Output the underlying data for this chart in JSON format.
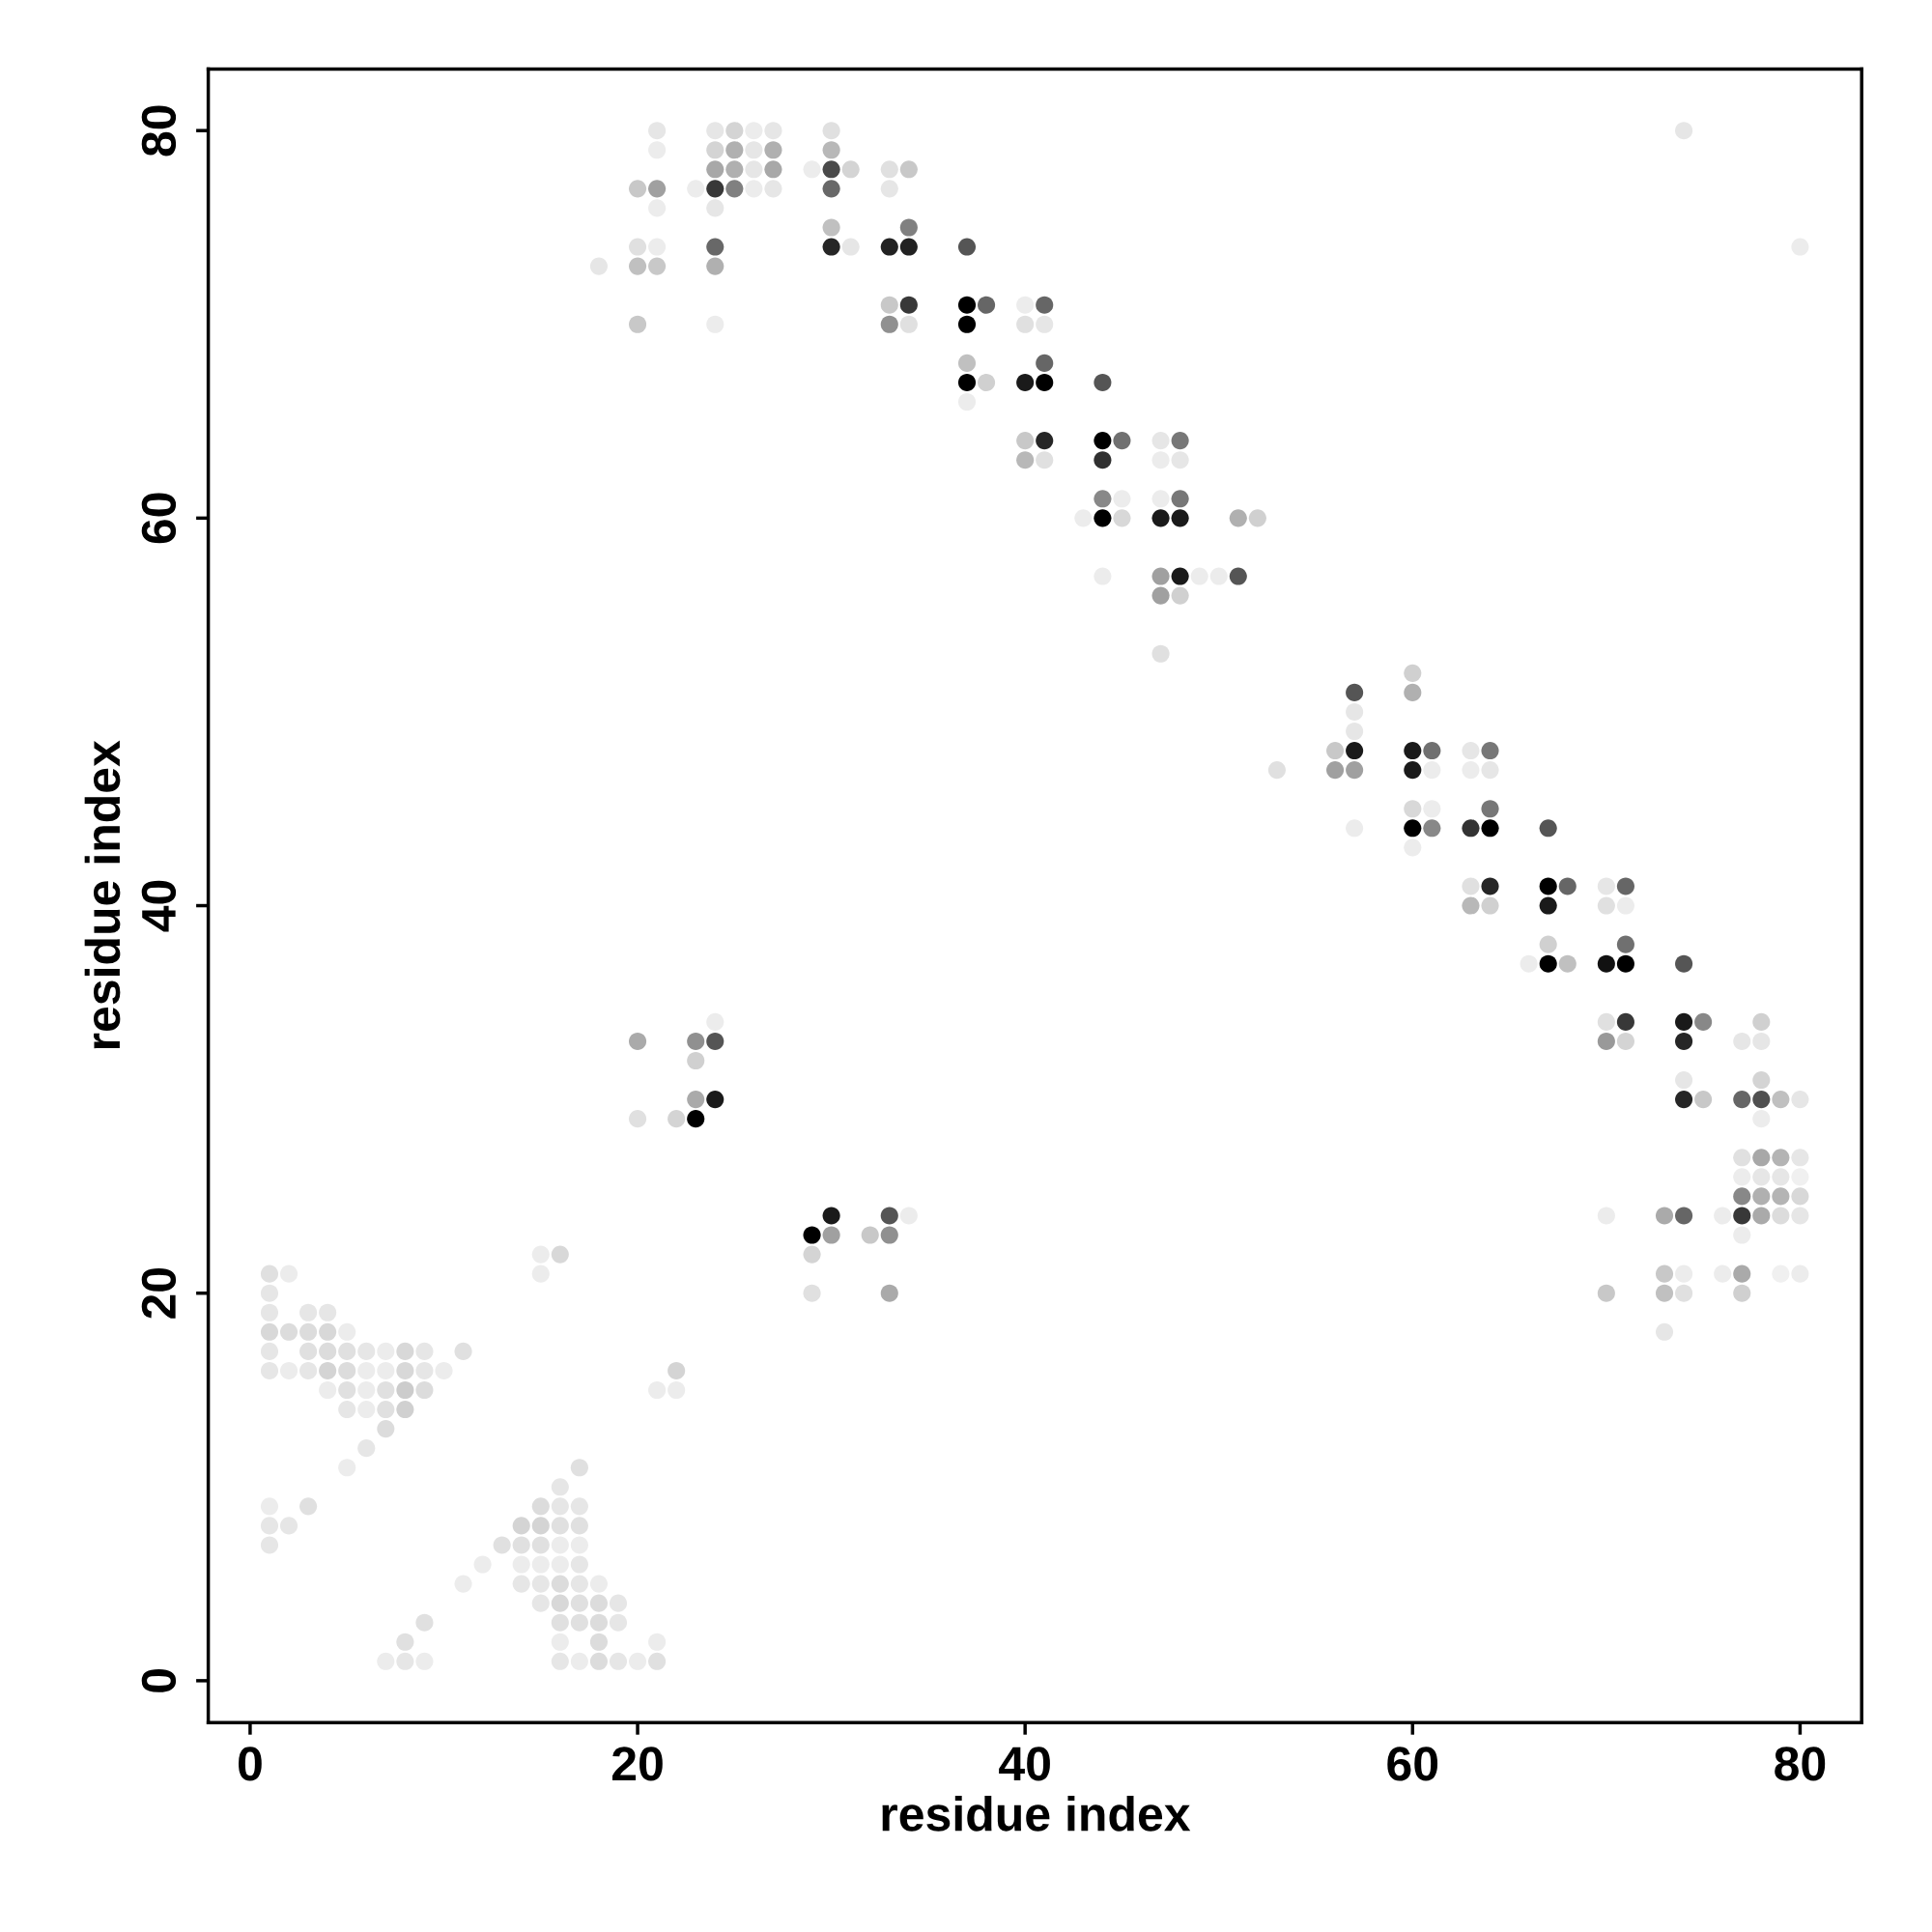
{
  "chart_data": {
    "type": "scatter",
    "xlabel": "residue index",
    "ylabel": "residue index",
    "xlim": [
      -2.16,
      83.18
    ],
    "ylim": [
      -2.16,
      83.18
    ],
    "xticks": [
      0,
      20,
      40,
      60,
      80
    ],
    "yticks": [
      0,
      20,
      40,
      60,
      80
    ],
    "marker": "circle",
    "x": [
      21,
      24,
      25,
      26,
      27,
      30,
      74,
      21,
      24,
      25,
      26,
      27,
      30,
      24,
      25,
      26,
      27,
      29,
      30,
      31,
      33,
      34,
      20,
      21,
      23,
      24,
      25,
      26,
      27,
      30,
      33,
      21,
      24,
      30,
      34,
      20,
      21,
      24,
      30,
      31,
      33,
      34,
      37,
      80,
      18,
      20,
      21,
      24,
      33,
      34,
      37,
      38,
      40,
      41,
      20,
      24,
      33,
      34,
      37,
      40,
      41,
      37,
      41,
      37,
      38,
      40,
      41,
      44,
      37,
      40,
      41,
      44,
      45,
      47,
      48,
      40,
      41,
      44,
      47,
      48,
      44,
      45,
      47,
      48,
      43,
      44,
      45,
      47,
      48,
      51,
      52,
      44,
      47,
      48,
      49,
      50,
      51,
      47,
      48,
      47,
      60,
      57,
      60,
      57,
      57,
      56,
      57,
      60,
      61,
      63,
      64,
      53,
      56,
      57,
      60,
      61,
      63,
      64,
      60,
      61,
      64,
      57,
      60,
      61,
      63,
      64,
      67,
      60,
      63,
      64,
      67,
      68,
      70,
      71,
      63,
      64,
      67,
      70,
      71,
      67,
      71,
      66,
      67,
      68,
      70,
      71,
      74,
      24,
      70,
      71,
      74,
      75,
      78,
      20,
      23,
      24,
      70,
      71,
      74,
      77,
      78,
      23,
      74,
      78,
      23,
      24,
      74,
      75,
      77,
      78,
      79,
      80,
      20,
      22,
      23,
      78,
      77,
      78,
      79,
      80,
      77,
      78,
      79,
      80,
      77,
      78,
      79,
      80,
      30,
      33,
      34,
      70,
      73,
      74,
      76,
      77,
      78,
      79,
      80,
      29,
      30,
      32,
      33,
      77,
      15,
      16,
      29,
      1,
      2,
      15,
      73,
      74,
      76,
      77,
      79,
      80,
      1,
      29,
      33,
      70,
      73,
      74,
      77,
      1,
      3,
      4,
      1,
      2,
      3,
      4,
      5,
      73,
      1,
      3,
      4,
      5,
      6,
      7,
      8,
      9,
      11,
      1,
      2,
      3,
      4,
      5,
      6,
      7,
      8,
      9,
      10,
      22,
      4,
      5,
      6,
      7,
      8,
      9,
      21,
      22,
      5,
      6,
      7,
      8,
      7,
      6,
      5,
      17,
      16,
      1,
      3,
      15,
      16,
      17,
      1,
      2,
      14,
      15,
      16,
      17,
      1,
      13,
      14,
      15,
      16,
      17,
      12,
      14,
      15,
      16,
      17,
      11,
      14,
      15,
      16,
      17,
      18,
      15,
      16,
      17,
      18,
      19,
      9,
      16,
      17,
      18,
      19,
      8,
      16,
      18,
      21,
      7,
      8,
      9,
      16,
      17,
      18,
      19,
      20,
      21
    ],
    "values": [
      80,
      80,
      80,
      80,
      80,
      80,
      80,
      79,
      79,
      79,
      79,
      79,
      79,
      78,
      78,
      78,
      78,
      78,
      78,
      78,
      78,
      78,
      77,
      77,
      77,
      77,
      77,
      77,
      77,
      77,
      77,
      76,
      76,
      75,
      75,
      74,
      74,
      74,
      74,
      74,
      74,
      74,
      74,
      74,
      73,
      73,
      73,
      73,
      71,
      71,
      71,
      71,
      71,
      71,
      70,
      70,
      70,
      70,
      70,
      70,
      70,
      68,
      68,
      67,
      67,
      67,
      67,
      67,
      66,
      64,
      64,
      64,
      64,
      64,
      64,
      63,
      63,
      63,
      63,
      63,
      61,
      61,
      61,
      61,
      60,
      60,
      60,
      60,
      60,
      60,
      60,
      57,
      57,
      57,
      57,
      57,
      57,
      56,
      56,
      53,
      52,
      51,
      51,
      50,
      49,
      48,
      48,
      48,
      48,
      48,
      48,
      47,
      47,
      47,
      47,
      47,
      47,
      47,
      45,
      45,
      45,
      44,
      44,
      44,
      44,
      44,
      44,
      43,
      41,
      41,
      41,
      41,
      41,
      41,
      40,
      40,
      40,
      40,
      40,
      38,
      38,
      37,
      37,
      37,
      37,
      37,
      37,
      34,
      34,
      34,
      34,
      34,
      34,
      33,
      33,
      33,
      33,
      33,
      33,
      33,
      33,
      32,
      31,
      31,
      30,
      30,
      30,
      30,
      30,
      30,
      30,
      30,
      29,
      29,
      29,
      29,
      27,
      27,
      27,
      27,
      26,
      26,
      26,
      26,
      25,
      25,
      25,
      25,
      24,
      24,
      24,
      24,
      24,
      24,
      24,
      24,
      24,
      24,
      24,
      23,
      23,
      23,
      23,
      23,
      22,
      22,
      22,
      21,
      21,
      21,
      21,
      21,
      21,
      21,
      21,
      21,
      20,
      20,
      20,
      20,
      20,
      20,
      20,
      19,
      19,
      19,
      18,
      18,
      18,
      18,
      18,
      18,
      17,
      17,
      17,
      17,
      17,
      17,
      17,
      17,
      17,
      16,
      16,
      16,
      16,
      16,
      16,
      16,
      16,
      16,
      16,
      16,
      15,
      15,
      15,
      15,
      15,
      15,
      15,
      15,
      14,
      14,
      14,
      14,
      13,
      12,
      11,
      11,
      10,
      9,
      9,
      9,
      9,
      9,
      8,
      8,
      8,
      8,
      8,
      8,
      7,
      7,
      7,
      7,
      7,
      7,
      6,
      6,
      6,
      6,
      6,
      5,
      5,
      5,
      5,
      5,
      5,
      4,
      4,
      4,
      4,
      4,
      3,
      3,
      3,
      3,
      3,
      2,
      2,
      2,
      2,
      1,
      1,
      1,
      1,
      1,
      1,
      1,
      1,
      1
    ],
    "colors": [
      "#e6e6e6",
      "#e6e6e6",
      "#d4d4d4",
      "#ececec",
      "#e6e6e6",
      "#e0e0e0",
      "#e6e6e6",
      "#ececec",
      "#d4d4d4",
      "#b0b0b0",
      "#e6e6e6",
      "#b0b0b0",
      "#b8b8b8",
      "#a8a8a8",
      "#b0b0b0",
      "#e6e6e6",
      "#a8a8a8",
      "#ececec",
      "#4a4a4a",
      "#d4d4d4",
      "#e0e0e0",
      "#c8c8c8",
      "#c8c8c8",
      "#a0a0a0",
      "#ececec",
      "#383838",
      "#808080",
      "#ececec",
      "#e6e6e6",
      "#686868",
      "#e6e6e6",
      "#ececec",
      "#e6e6e6",
      "#c0c0c0",
      "#808080",
      "#e0e0e0",
      "#ececec",
      "#686868",
      "#262626",
      "#e6e6e6",
      "#222222",
      "#222222",
      "#555555",
      "#ececec",
      "#e6e6e6",
      "#c0c0c0",
      "#c8c8c8",
      "#b0b0b0",
      "#c8c8c8",
      "#383838",
      "#000000",
      "#666666",
      "#ececec",
      "#666666",
      "#c8c8c8",
      "#ececec",
      "#909090",
      "#e0e0e0",
      "#000000",
      "#e0e0e0",
      "#e6e6e6",
      "#c0c0c0",
      "#666666",
      "#000000",
      "#d0d0d0",
      "#1a1a1a",
      "#000000",
      "#555555",
      "#ececec",
      "#c8c8c8",
      "#262626",
      "#000000",
      "#707070",
      "#e6e6e6",
      "#777777",
      "#b8b8b8",
      "#e0e0e0",
      "#303030",
      "#ececec",
      "#e6e6e6",
      "#888888",
      "#ececec",
      "#ececec",
      "#777777",
      "#ececec",
      "#000000",
      "#d8d8d8",
      "#1a1a1a",
      "#1a1a1a",
      "#b0b0b0",
      "#d0d0d0",
      "#ececec",
      "#a0a0a0",
      "#1a1a1a",
      "#ececec",
      "#ececec",
      "#555555",
      "#a0a0a0",
      "#d0d0d0",
      "#e0e0e0",
      "#d0d0d0",
      "#555555",
      "#b0b0b0",
      "#e6e6e6",
      "#e6e6e6",
      "#c8c8c8",
      "#1a1a1a",
      "#1a1a1a",
      "#707070",
      "#e6e6e6",
      "#777777",
      "#e0e0e0",
      "#a0a0a0",
      "#a0a0a0",
      "#1a1a1a",
      "#ececec",
      "#ececec",
      "#e6e6e6",
      "#d8d8d8",
      "#ececec",
      "#777777",
      "#ececec",
      "#000000",
      "#888888",
      "#333333",
      "#000000",
      "#555555",
      "#ececec",
      "#e0e0e0",
      "#262626",
      "#000000",
      "#666666",
      "#e6e6e6",
      "#666666",
      "#b8b8b8",
      "#d0d0d0",
      "#1a1a1a",
      "#e0e0e0",
      "#ececec",
      "#d0d0d0",
      "#707070",
      "#ececec",
      "#000000",
      "#c0c0c0",
      "#111111",
      "#000000",
      "#555555",
      "#ececec",
      "#e0e0e0",
      "#383838",
      "#1a1a1a",
      "#888888",
      "#d0d0d0",
      "#aaaaaa",
      "#909090",
      "#555555",
      "#999999",
      "#d4d4d4",
      "#262626",
      "#e6e6e6",
      "#e6e6e6",
      "#d0d0d0",
      "#e6e6e6",
      "#d4d4d4",
      "#aaaaaa",
      "#1a1a1a",
      "#262626",
      "#c8c8c8",
      "#666666",
      "#505050",
      "#c0c0c0",
      "#e6e6e6",
      "#e0e0e0",
      "#d4d4d4",
      "#000000",
      "#ececec",
      "#e0e0e0",
      "#a8a8a8",
      "#b4b4b4",
      "#e6e6e6",
      "#ececec",
      "#e6e6e6",
      "#e6e6e6",
      "#f0f0f0",
      "#888888",
      "#b0b0b0",
      "#b4b4b4",
      "#d8d8d8",
      "#1a1a1a",
      "#555555",
      "#ececec",
      "#ececec",
      "#aaaaaa",
      "#666666",
      "#ececec",
      "#383838",
      "#aaaaaa",
      "#dcdcdc",
      "#e6e6e6",
      "#000000",
      "#a0a0a0",
      "#c8c8c8",
      "#909090",
      "#ececec",
      "#ececec",
      "#d8d8d8",
      "#d4d4d4",
      "#e0e0e0",
      "#ececec",
      "#ececec",
      "#c8c8c8",
      "#ececec",
      "#ececec",
      "#aaaaaa",
      "#f0f0f0",
      "#ececec",
      "#e6e6e6",
      "#e0e0e0",
      "#aaaaaa",
      "#c8c8c8",
      "#c0c0c0",
      "#e0e0e0",
      "#d0d0d0",
      "#e6e6e6",
      "#e6e6e6",
      "#e6e6e6",
      "#d8d8d8",
      "#dcdcdc",
      "#dcdcdc",
      "#d8d8d8",
      "#ececec",
      "#e6e6e6",
      "#e6e6e6",
      "#e0e0e0",
      "#dcdcdc",
      "#e0e0e0",
      "#e6e6e6",
      "#ececec",
      "#d8d8d8",
      "#e6e6e6",
      "#e0e0e0",
      "#e6e6e6",
      "#ececec",
      "#e6e6e6",
      "#d4d4d4",
      "#dcdcdc",
      "#ececec",
      "#ececec",
      "#d8d8d8",
      "#e6e6e6",
      "#ececec",
      "#d4d4d4",
      "#ececec",
      "#e0e0e0",
      "#ececec",
      "#e0e0e0",
      "#cccccc",
      "#dcdcdc",
      "#ececec",
      "#ececec",
      "#e6e6e6",
      "#ececec",
      "#e0e0e0",
      "#d0d0d0",
      "#dcdcdc",
      "#e6e6e6",
      "#ececec",
      "#e0e0e0",
      "#e6e6e6",
      "#ececec",
      "#e0e0e0",
      "#dcdcdc",
      "#e6e6e6",
      "#e6e6e6",
      "#e6e6e6",
      "#e6e6e6",
      "#d4d4d4",
      "#d4d4d4",
      "#e0e0e0",
      "#e0e0e0",
      "#e6e6e6",
      "#e0e0e0",
      "#e0e0e0",
      "#e0e0e0",
      "#ececec",
      "#ececec",
      "#ececec",
      "#ececec",
      "#ececec",
      "#ececec",
      "#e6e6e6",
      "#ececec",
      "#e6e6e6",
      "#e6e6e6",
      "#dcdcdc",
      "#e6e6e6",
      "#ececec",
      "#e6e6e6",
      "#d8d8d8",
      "#e0e0e0",
      "#dcdcdc",
      "#e6e6e6",
      "#e0e0e0",
      "#e0e0e0",
      "#e0e0e0",
      "#dcdcdc",
      "#e6e6e6",
      "#e0e0e0",
      "#ececec",
      "#dcdcdc",
      "#ececec",
      "#ececec",
      "#e6e6e6",
      "#ececec",
      "#e6e6e6",
      "#ececec",
      "#dcdcdc",
      "#e6e6e6",
      "#ececec",
      "#e0e0e0"
    ]
  }
}
